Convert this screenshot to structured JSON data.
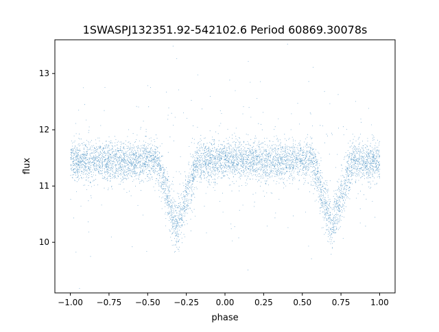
{
  "chart_data": {
    "type": "scatter",
    "title": "1SWASPJ132351.92-542102.6 Period 60869.30078s",
    "xlabel": "phase",
    "ylabel": "flux",
    "xlim": [
      -1.1,
      1.1
    ],
    "ylim": [
      9.1,
      13.6
    ],
    "xticks": [
      -1.0,
      -0.75,
      -0.5,
      -0.25,
      0.0,
      0.25,
      0.5,
      0.75,
      1.0
    ],
    "xtick_labels": [
      "−1.00",
      "−0.75",
      "−0.50",
      "−0.25",
      "0.00",
      "0.25",
      "0.50",
      "0.75",
      "1.00"
    ],
    "yticks": [
      10,
      11,
      12,
      13
    ],
    "ytick_labels": [
      "10",
      "11",
      "12",
      "13"
    ],
    "grid": false,
    "legend": "none",
    "point_color": "#1f77b4",
    "baseline_flux": 11.45,
    "scatter_sigma": 0.17,
    "eclipse_minima": [
      {
        "phase": -0.31,
        "flux": 10.25
      },
      {
        "phase": 0.69,
        "flux": 10.25
      }
    ],
    "eclipse_half_width": 0.13,
    "points_per_phase_interval": 24000,
    "outlier_fraction": 0.05
  }
}
